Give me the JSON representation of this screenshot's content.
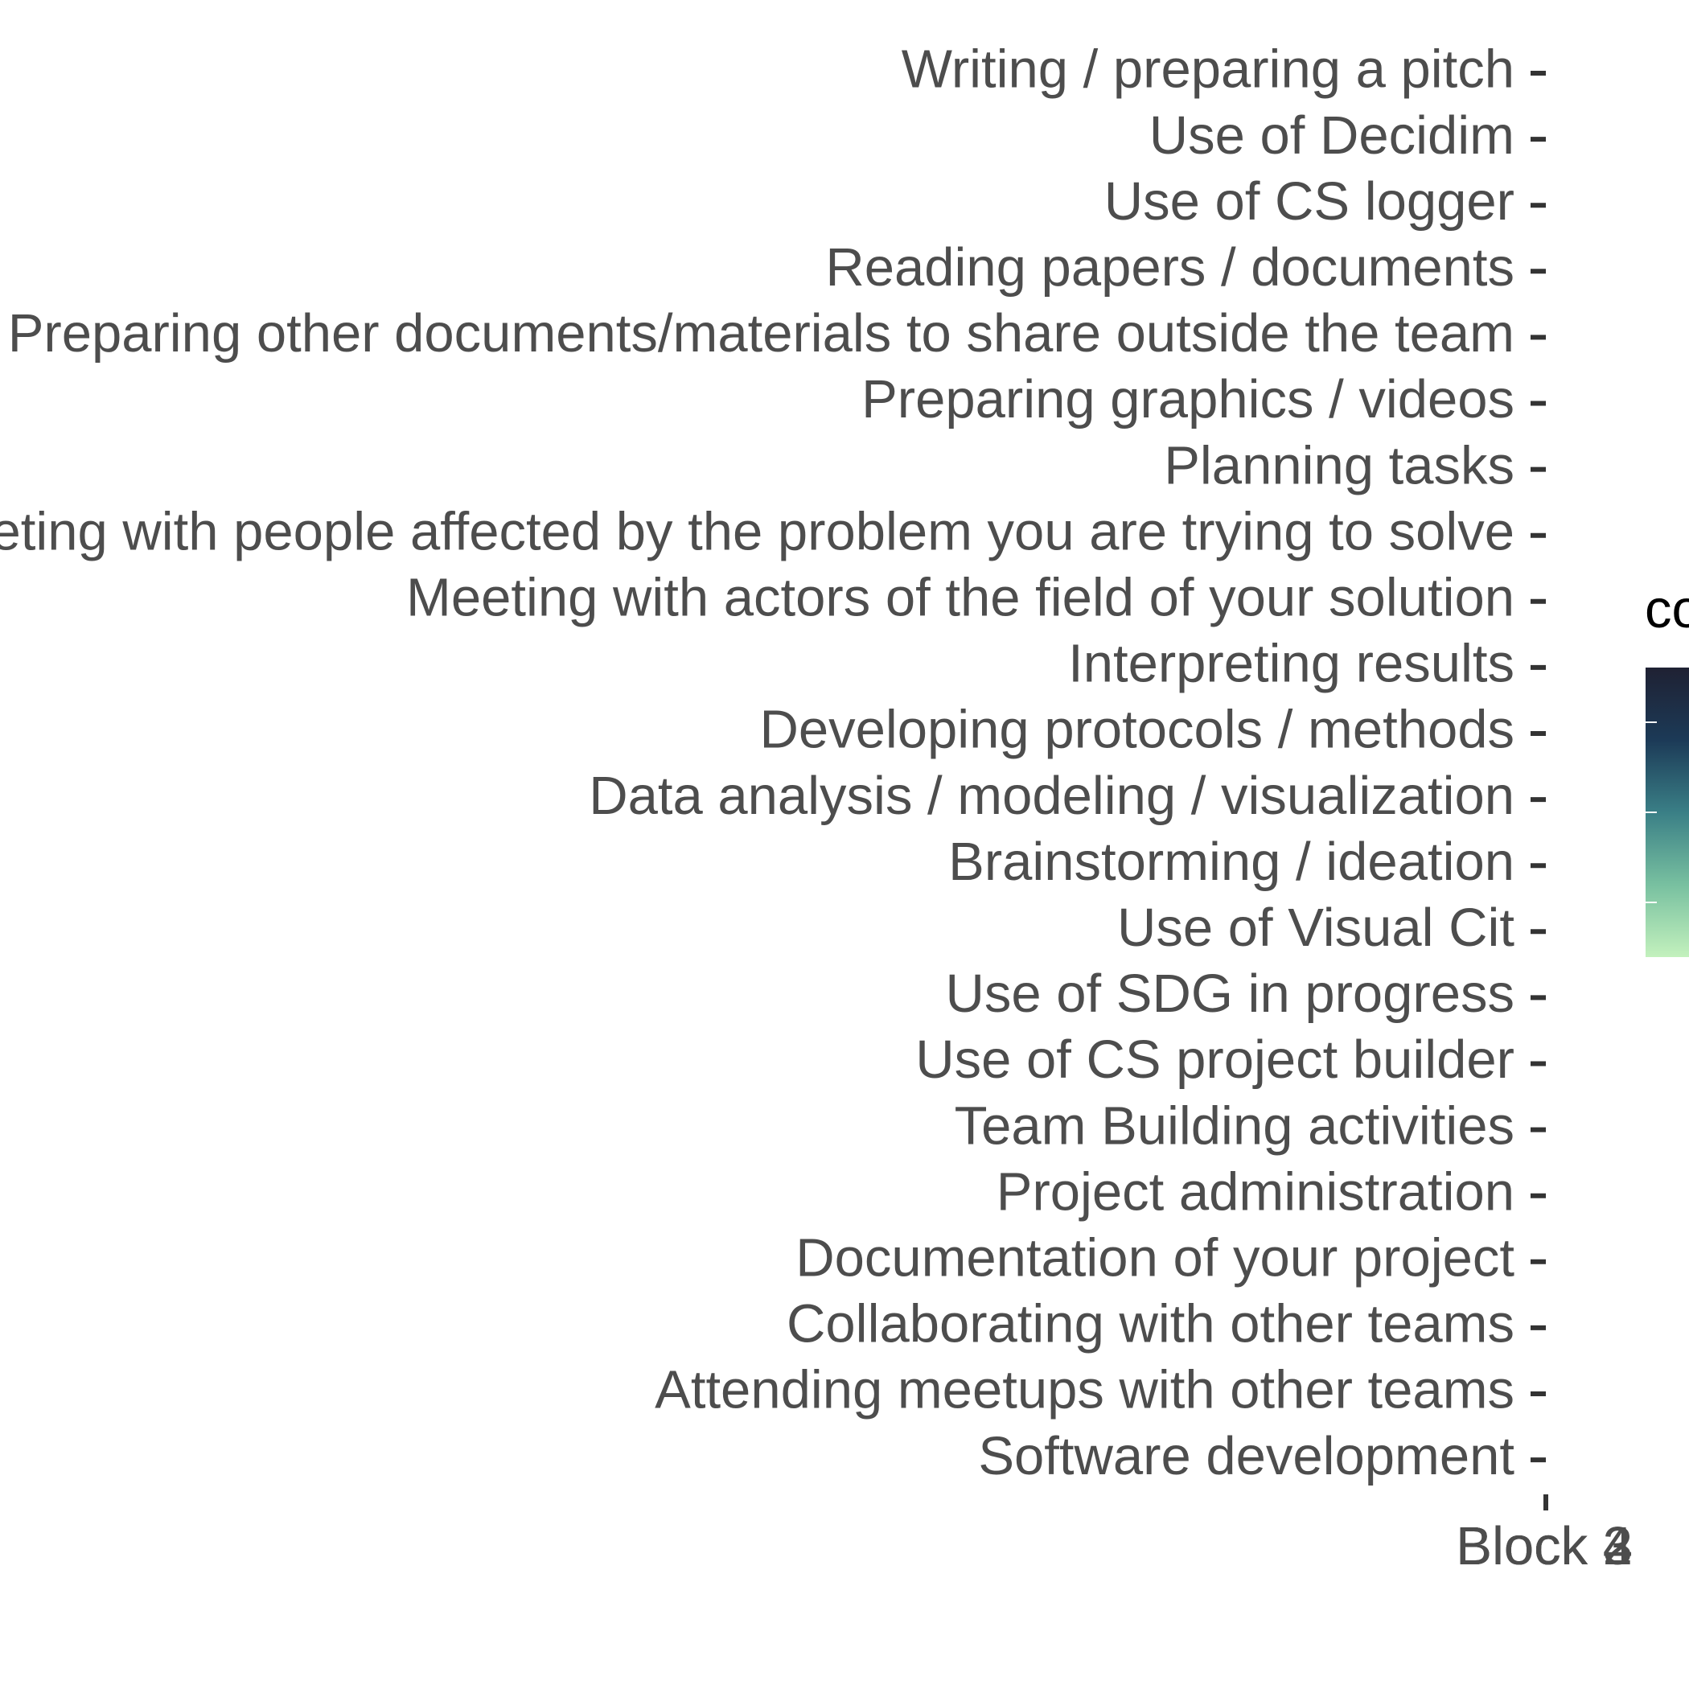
{
  "chart_data": {
    "type": "heatmap",
    "title": "",
    "xlabel": "",
    "ylabel": "",
    "y_categories": [
      "Writing  / preparing a pitch",
      "Use of Decidim",
      "Use of CS logger",
      "Reading papers / documents",
      "Preparing other documents/materials to share outside the team",
      "Preparing graphics / videos",
      "Planning tasks",
      "Meeting with people affected by the problem you are trying to solve",
      "Meeting with actors of the field of your solution",
      "Interpreting results",
      "Developing protocols / methods",
      "Data analysis / modeling / visualization",
      "Brainstorming / ideation",
      "Use of Visual Cit",
      "Use of SDG in progress",
      "Use of CS project builder",
      "Team Building activities",
      "Project administration",
      "Documentation of your project",
      "Collaborating with other teams",
      "Attending meetups with other teams",
      "Software development"
    ],
    "x_categories": [
      "Block 2",
      "Block 3",
      "Block 4"
    ],
    "legend": {
      "title": "co",
      "placement": "right",
      "gradient": [
        "#1f2133",
        "#1c3a57",
        "#3a7f86",
        "#78c0a0",
        "#c3f1bd"
      ]
    }
  }
}
